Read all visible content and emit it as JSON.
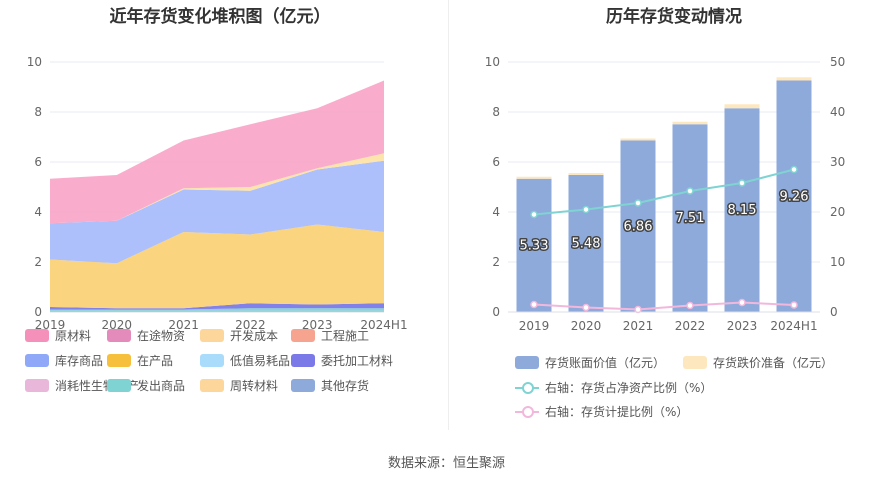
{
  "source": "数据来源：恒生聚源",
  "chart_data": [
    {
      "type": "area",
      "stacked": true,
      "title": "近年存货变化堆积图（亿元）",
      "x": [
        "2019",
        "2020",
        "2021",
        "2022",
        "2023",
        "2024H1"
      ],
      "ylim": [
        0,
        10
      ],
      "yticks": [
        0,
        2,
        4,
        6,
        8,
        10
      ],
      "legend_position": "bottom",
      "series": [
        {
          "name": "其他存货",
          "color": "#8eaadb",
          "values": [
            0.05,
            0.05,
            0.05,
            0.05,
            0.05,
            0.05
          ]
        },
        {
          "name": "发出商品",
          "color": "#7fd3d3",
          "values": [
            0.05,
            0.05,
            0.05,
            0.1,
            0.1,
            0.1
          ]
        },
        {
          "name": "消耗性生物资产",
          "color": "#e9b7d9",
          "values": [
            0,
            0,
            0,
            0,
            0,
            0
          ]
        },
        {
          "name": "委托加工材料",
          "color": "#7b79e8",
          "values": [
            0.1,
            0.05,
            0.05,
            0.2,
            0.15,
            0.2
          ]
        },
        {
          "name": "在产品",
          "color": "#fbd278",
          "values": [
            1.9,
            1.8,
            3.05,
            2.75,
            3.2,
            2.85
          ]
        },
        {
          "name": "库存商品",
          "color": "#a9bdfb",
          "values": [
            1.45,
            1.7,
            1.7,
            1.75,
            2.2,
            2.85
          ]
        },
        {
          "name": "周转材料",
          "color": "#fde3a8",
          "values": [
            0,
            0,
            0.05,
            0.15,
            0.05,
            0.3
          ]
        },
        {
          "name": "开发成本",
          "color": "#fcd69a",
          "values": [
            0,
            0,
            0,
            0,
            0,
            0
          ]
        },
        {
          "name": "原材料",
          "color": "#f9a8c8",
          "values": [
            1.78,
            1.83,
            1.91,
            2.51,
            2.4,
            2.91
          ]
        },
        {
          "name": "在途物资",
          "color": "#e48bbb",
          "values": [
            0,
            0,
            0,
            0,
            0,
            0
          ]
        },
        {
          "name": "工程施工",
          "color": "#f6a48f",
          "values": [
            0,
            0,
            0,
            0,
            0,
            0
          ]
        },
        {
          "name": "低值易耗品",
          "color": "#a8dcfa",
          "values": [
            0,
            0,
            0,
            0,
            0,
            0
          ]
        }
      ],
      "legend": [
        {
          "name": "原材料",
          "color": "#f590ba"
        },
        {
          "name": "在途物资",
          "color": "#e48bbb"
        },
        {
          "name": "开发成本",
          "color": "#fcd69a"
        },
        {
          "name": "工程施工",
          "color": "#f6a48f"
        },
        {
          "name": "库存商品",
          "color": "#8fa9f8"
        },
        {
          "name": "在产品",
          "color": "#f6bf3c"
        },
        {
          "name": "低值易耗品",
          "color": "#a8dcfa"
        },
        {
          "name": "委托加工材料",
          "color": "#7b79e8"
        },
        {
          "name": "消耗性生物资产",
          "color": "#e9b7d9"
        },
        {
          "name": "发出商品",
          "color": "#7fd3d3"
        },
        {
          "name": "周转材料",
          "color": "#fcd69a"
        },
        {
          "name": "其他存货",
          "color": "#8eaadb"
        }
      ]
    },
    {
      "type": "bar+line",
      "title": "历年存货变动情况",
      "x": [
        "2019",
        "2020",
        "2021",
        "2022",
        "2023",
        "2024H1"
      ],
      "ylim_left": [
        0,
        10
      ],
      "yticks_left": [
        0,
        2,
        4,
        6,
        8,
        10
      ],
      "ylim_right": [
        0,
        50
      ],
      "yticks_right": [
        0,
        10,
        20,
        30,
        40,
        50
      ],
      "legend_position": "bottom",
      "bars": [
        {
          "name": "存货账面价值（亿元）",
          "color": "#8eaadb",
          "values": [
            5.33,
            5.48,
            6.86,
            7.51,
            8.15,
            9.26
          ],
          "labels": [
            "5.33",
            "5.48",
            "6.86",
            "7.51",
            "8.15",
            "9.26"
          ]
        },
        {
          "name": "存货跌价准备（亿元）",
          "color": "#fde7bf",
          "values": [
            0.08,
            0.05,
            0.03,
            0.1,
            0.16,
            0.13
          ]
        }
      ],
      "lines": [
        {
          "name": "右轴：存货占净资产比例（%）",
          "color": "#7fd3d3",
          "axis": "right",
          "values": [
            19.5,
            20.5,
            21.8,
            24.2,
            25.8,
            28.5
          ]
        },
        {
          "name": "右轴：存货计提比例（%）",
          "color": "#f2b8dc",
          "axis": "right",
          "values": [
            1.5,
            0.9,
            0.5,
            1.3,
            1.9,
            1.4
          ]
        }
      ]
    }
  ]
}
